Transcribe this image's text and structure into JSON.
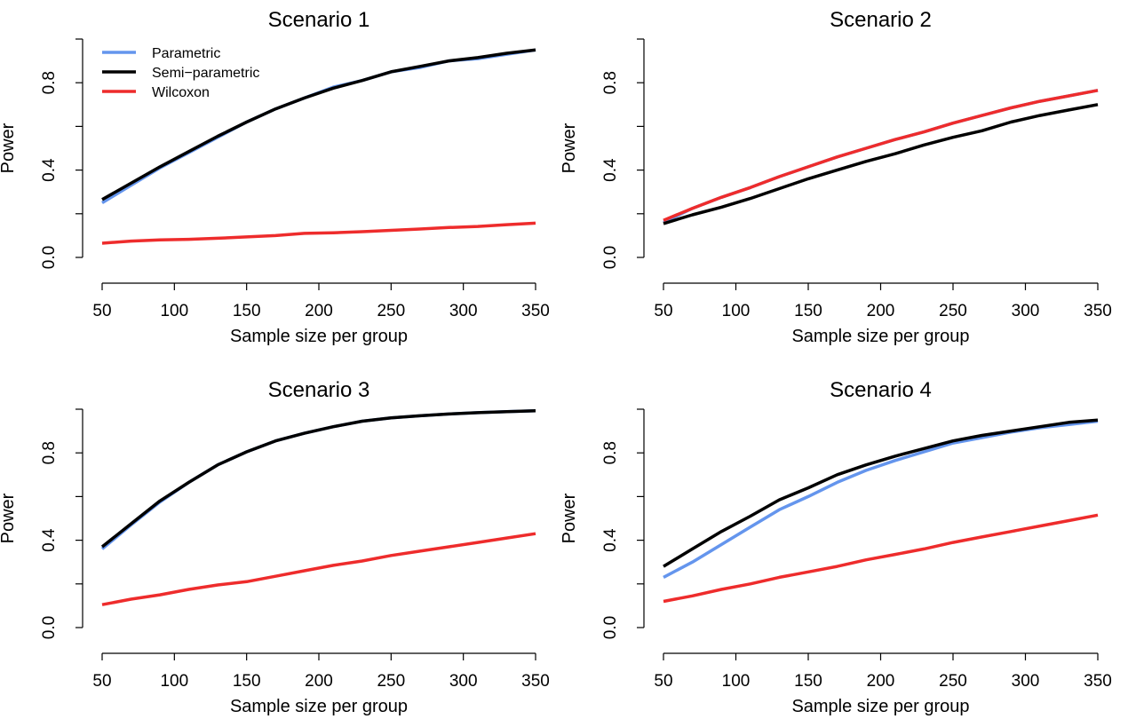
{
  "chart_data": [
    {
      "type": "line",
      "title": "Scenario 1",
      "xlabel": "Sample size per group",
      "ylabel": "Power",
      "xlim": [
        50,
        350
      ],
      "ylim": [
        0,
        1
      ],
      "xticks": [
        "50",
        "100",
        "150",
        "200",
        "250",
        "300",
        "350"
      ],
      "yticks": [
        "0.0",
        "0.4",
        "0.8"
      ],
      "grid": false,
      "legend": "top-left",
      "x": [
        50,
        70,
        90,
        110,
        130,
        150,
        170,
        190,
        210,
        230,
        250,
        270,
        290,
        310,
        330,
        350
      ],
      "series": [
        {
          "name": "Parametric",
          "color": "#6495ED",
          "values": [
            0.25,
            0.33,
            0.41,
            0.48,
            0.55,
            0.62,
            0.68,
            0.73,
            0.78,
            0.81,
            0.85,
            0.87,
            0.9,
            0.91,
            0.93,
            0.95
          ]
        },
        {
          "name": "Semi-parametric",
          "color": "#000000",
          "values": [
            0.265,
            0.34,
            0.415,
            0.485,
            0.555,
            0.62,
            0.68,
            0.73,
            0.775,
            0.81,
            0.85,
            0.875,
            0.9,
            0.915,
            0.935,
            0.95
          ]
        },
        {
          "name": "Wilcoxon",
          "color": "#EE2C2C",
          "values": [
            0.065,
            0.075,
            0.08,
            0.083,
            0.088,
            0.094,
            0.1,
            0.11,
            0.113,
            0.118,
            0.124,
            0.13,
            0.137,
            0.142,
            0.15,
            0.157
          ]
        }
      ]
    },
    {
      "type": "line",
      "title": "Scenario 2",
      "xlabel": "Sample size per group",
      "ylabel": "Power",
      "xlim": [
        50,
        350
      ],
      "ylim": [
        0,
        1
      ],
      "xticks": [
        "50",
        "100",
        "150",
        "200",
        "250",
        "300",
        "350"
      ],
      "yticks": [
        "0.0",
        "0.4",
        "0.8"
      ],
      "grid": false,
      "x": [
        50,
        70,
        90,
        110,
        130,
        150,
        170,
        190,
        210,
        230,
        250,
        270,
        290,
        310,
        330,
        350
      ],
      "series": [
        {
          "name": "Parametric",
          "color": "#6495ED",
          "values": [
            0.16,
            0.225,
            0.275,
            0.32,
            0.37,
            0.415,
            0.46,
            0.5,
            0.54,
            0.575,
            0.615,
            0.65,
            0.685,
            0.715,
            0.74,
            0.765
          ]
        },
        {
          "name": "Semi-parametric",
          "color": "#000000",
          "values": [
            0.155,
            0.195,
            0.23,
            0.27,
            0.315,
            0.36,
            0.4,
            0.44,
            0.475,
            0.515,
            0.55,
            0.58,
            0.62,
            0.65,
            0.675,
            0.7
          ]
        },
        {
          "name": "Wilcoxon",
          "color": "#EE2C2C",
          "values": [
            0.17,
            0.225,
            0.275,
            0.32,
            0.37,
            0.415,
            0.46,
            0.5,
            0.54,
            0.575,
            0.615,
            0.65,
            0.685,
            0.715,
            0.74,
            0.765
          ]
        }
      ]
    },
    {
      "type": "line",
      "title": "Scenario 3",
      "xlabel": "Sample size per group",
      "ylabel": "Power",
      "xlim": [
        50,
        350
      ],
      "ylim": [
        0,
        1
      ],
      "xticks": [
        "50",
        "100",
        "150",
        "200",
        "250",
        "300",
        "350"
      ],
      "yticks": [
        "0.0",
        "0.4",
        "0.8"
      ],
      "grid": false,
      "x": [
        50,
        70,
        90,
        110,
        130,
        150,
        170,
        190,
        210,
        230,
        250,
        270,
        290,
        310,
        330,
        350
      ],
      "series": [
        {
          "name": "Parametric",
          "color": "#6495ED",
          "values": [
            0.36,
            0.47,
            0.575,
            0.665,
            0.745,
            0.805,
            0.855,
            0.89,
            0.92,
            0.945,
            0.96,
            0.97,
            0.978,
            0.984,
            0.989,
            0.993
          ]
        },
        {
          "name": "Semi-parametric",
          "color": "#000000",
          "values": [
            0.37,
            0.475,
            0.58,
            0.665,
            0.745,
            0.805,
            0.855,
            0.89,
            0.92,
            0.945,
            0.96,
            0.97,
            0.978,
            0.984,
            0.989,
            0.993
          ]
        },
        {
          "name": "Wilcoxon",
          "color": "#EE2C2C",
          "values": [
            0.105,
            0.13,
            0.15,
            0.175,
            0.195,
            0.21,
            0.235,
            0.26,
            0.285,
            0.305,
            0.33,
            0.35,
            0.37,
            0.39,
            0.41,
            0.43
          ]
        }
      ]
    },
    {
      "type": "line",
      "title": "Scenario 4",
      "xlabel": "Sample size per group",
      "ylabel": "Power",
      "xlim": [
        50,
        350
      ],
      "ylim": [
        0,
        1
      ],
      "xticks": [
        "50",
        "100",
        "150",
        "200",
        "250",
        "300",
        "350"
      ],
      "yticks": [
        "0.0",
        "0.4",
        "0.8"
      ],
      "grid": false,
      "x": [
        50,
        70,
        90,
        110,
        130,
        150,
        170,
        190,
        210,
        230,
        250,
        270,
        290,
        310,
        330,
        350
      ],
      "series": [
        {
          "name": "Parametric",
          "color": "#6495ED",
          "values": [
            0.23,
            0.3,
            0.38,
            0.46,
            0.54,
            0.6,
            0.665,
            0.72,
            0.765,
            0.805,
            0.845,
            0.87,
            0.895,
            0.915,
            0.93,
            0.945
          ]
        },
        {
          "name": "Semi-parametric",
          "color": "#000000",
          "values": [
            0.28,
            0.36,
            0.44,
            0.51,
            0.585,
            0.64,
            0.7,
            0.745,
            0.785,
            0.82,
            0.855,
            0.88,
            0.9,
            0.92,
            0.94,
            0.95
          ]
        },
        {
          "name": "Wilcoxon",
          "color": "#EE2C2C",
          "values": [
            0.12,
            0.145,
            0.175,
            0.2,
            0.23,
            0.255,
            0.28,
            0.31,
            0.335,
            0.36,
            0.39,
            0.415,
            0.44,
            0.465,
            0.49,
            0.515
          ]
        }
      ]
    }
  ]
}
